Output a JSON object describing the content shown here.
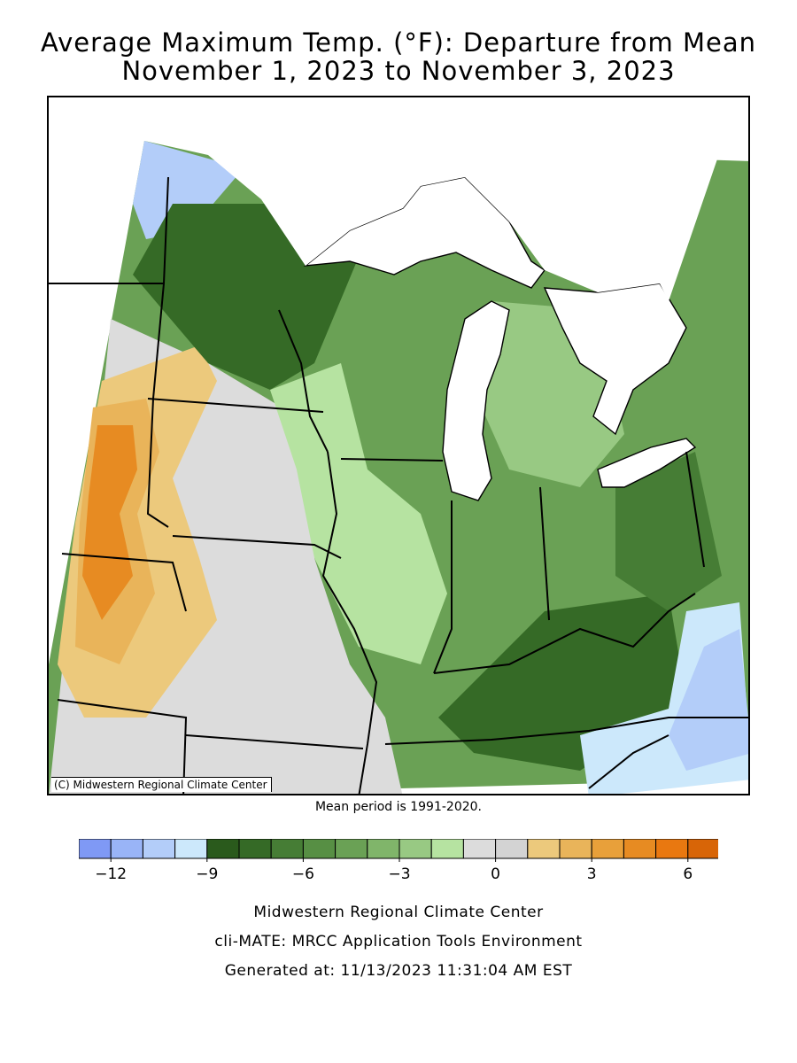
{
  "title": {
    "line1": "Average Maximum Temp. (°F): Departure from Mean",
    "line2": "November 1, 2023 to November 3, 2023"
  },
  "map": {
    "credit": "(C) Midwestern Regional Climate Center",
    "mean_period": "Mean period is 1991-2020."
  },
  "legend": {
    "bins": [
      {
        "color": "#7f99f5"
      },
      {
        "color": "#99b4f7"
      },
      {
        "color": "#b3cdf9"
      },
      {
        "color": "#cce8fb"
      },
      {
        "color": "#2a5a1c"
      },
      {
        "color": "#356a26"
      },
      {
        "color": "#467d35"
      },
      {
        "color": "#578f44"
      },
      {
        "color": "#6aa155"
      },
      {
        "color": "#80b56a"
      },
      {
        "color": "#98c983"
      },
      {
        "color": "#b6e3a1"
      },
      {
        "color": "#dcdcdc"
      },
      {
        "color": "#d3d3d3"
      },
      {
        "color": "#ecc97c"
      },
      {
        "color": "#e9b45a"
      },
      {
        "color": "#e8a03a"
      },
      {
        "color": "#e78b22"
      },
      {
        "color": "#e97810"
      },
      {
        "color": "#d86507"
      }
    ],
    "tick_labels": [
      {
        "label": "−12",
        "bin": 1
      },
      {
        "label": "−9",
        "bin": 4
      },
      {
        "label": "−6",
        "bin": 7
      },
      {
        "label": "−3",
        "bin": 10
      },
      {
        "label": "0",
        "bin": 13
      },
      {
        "label": "3",
        "bin": 16
      },
      {
        "label": "6",
        "bin": 19
      }
    ]
  },
  "footer": {
    "line1": "Midwestern Regional Climate Center",
    "line2": "cli-MATE: MRCC Application Tools Environment",
    "line3": "Generated at: 11/13/2023 11:31:04 AM EST"
  }
}
